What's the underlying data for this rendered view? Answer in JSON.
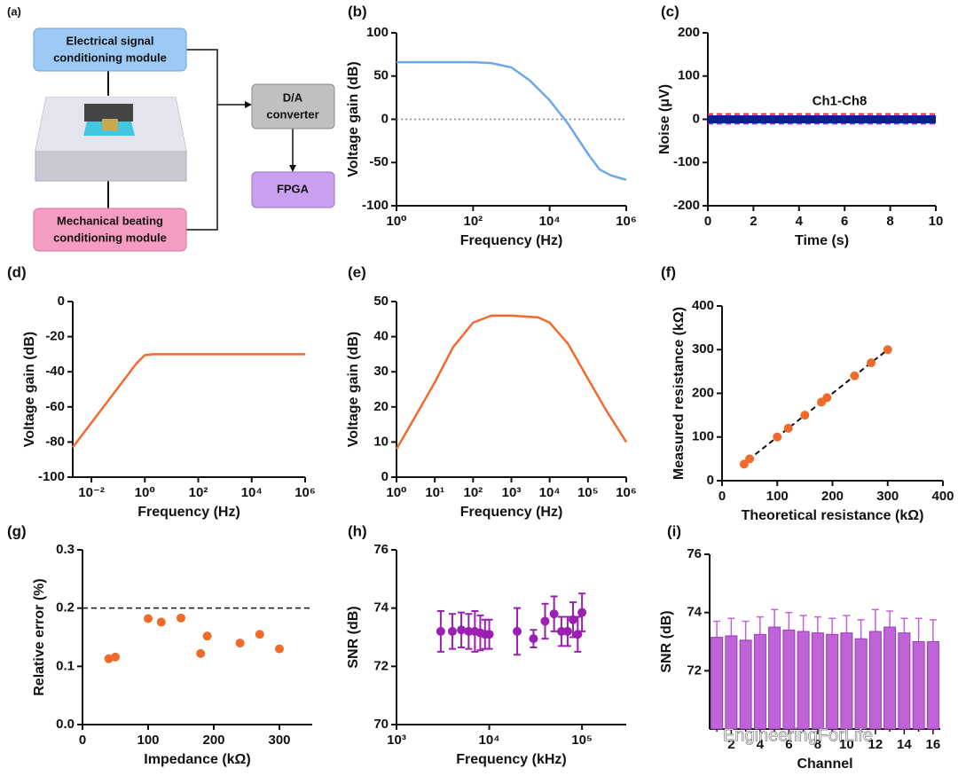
{
  "diagram": {
    "label": "(a)",
    "boxes": [
      {
        "lines": [
          "Electrical signal",
          "conditioning module"
        ]
      },
      {
        "lines": [
          "Mechanical beating",
          "conditioning module"
        ]
      },
      {
        "lines": [
          "D/A",
          "converter"
        ]
      },
      {
        "lines": [
          "FPGA"
        ]
      }
    ]
  },
  "watermark": "EngineeringForLife",
  "chart_data": [
    {
      "label": "(b)",
      "type": "line",
      "xlabel": "Frequency (Hz)",
      "ylabel": "Voltage gain (dB)",
      "log_x": true,
      "xlim": [
        1,
        1000000
      ],
      "xticks": [
        {
          "value": 1,
          "label": "10⁰"
        },
        {
          "value": 100,
          "label": "10²"
        },
        {
          "value": 10000,
          "label": "10⁴"
        },
        {
          "value": 1000000,
          "label": "10⁶"
        }
      ],
      "ylim": [
        -100,
        100
      ],
      "yticks": [
        -100,
        -50,
        0,
        50,
        100
      ],
      "hline": {
        "value": 0,
        "style": "dotted",
        "color": "#888888"
      },
      "series": [
        {
          "style": "solid",
          "color": "#6fa8e8",
          "x": [
            1,
            10,
            100,
            300,
            1000,
            3000,
            10000,
            30000,
            100000,
            200000,
            400000,
            1000000
          ],
          "values": [
            66,
            66,
            66,
            65,
            60,
            45,
            22,
            -5,
            -40,
            -58,
            -65,
            -70
          ]
        }
      ]
    },
    {
      "label": "(c)",
      "type": "line",
      "xlabel": "Time (s)",
      "ylabel": "Noise (μV)",
      "xlim": [
        0,
        10
      ],
      "xticks": [
        0,
        2,
        4,
        6,
        8,
        10
      ],
      "ylim": [
        -200,
        200
      ],
      "yticks": [
        -200,
        -100,
        0,
        100,
        200
      ],
      "annotation": "Ch1-Ch8",
      "series": [
        {
          "style": "dashed",
          "color": "#e8253a",
          "x": [
            0,
            10
          ],
          "values": [
            12,
            12
          ]
        },
        {
          "style": "dashed",
          "color": "#e8253a",
          "x": [
            0,
            10
          ],
          "values": [
            -10,
            -10
          ]
        },
        {
          "style": "band",
          "color": "#0a1e9c",
          "x": [
            0,
            10
          ],
          "values": [
            0,
            0
          ]
        }
      ]
    },
    {
      "label": "(d)",
      "type": "line",
      "xlabel": "Frequency (Hz)",
      "ylabel": "Voltage gain (dB)",
      "log_x": true,
      "xlim": [
        0.002,
        1000000
      ],
      "xticks": [
        {
          "value": 0.01,
          "label": "10⁻²"
        },
        {
          "value": 1,
          "label": "10⁰"
        },
        {
          "value": 100,
          "label": "10²"
        },
        {
          "value": 10000,
          "label": "10⁴"
        },
        {
          "value": 1000000,
          "label": "10⁶"
        }
      ],
      "ylim": [
        -100,
        0
      ],
      "yticks": [
        -100,
        -80,
        -60,
        -40,
        -20,
        0
      ],
      "series": [
        {
          "style": "solid",
          "color": "#f26a2e",
          "x": [
            0.002,
            0.01,
            0.1,
            0.5,
            1,
            2,
            1000000
          ],
          "values": [
            -83,
            -69,
            -49,
            -35,
            -30.5,
            -30,
            -30
          ]
        }
      ]
    },
    {
      "label": "(e)",
      "type": "line",
      "xlabel": "Frequency (Hz)",
      "ylabel": "Voltage gain (dB)",
      "log_x": true,
      "xlim": [
        1,
        1000000
      ],
      "xticks": [
        {
          "value": 1,
          "label": "10⁰"
        },
        {
          "value": 10,
          "label": "10¹"
        },
        {
          "value": 100,
          "label": "10²"
        },
        {
          "value": 1000,
          "label": "10³"
        },
        {
          "value": 10000,
          "label": "10⁴"
        },
        {
          "value": 100000,
          "label": "10⁵"
        },
        {
          "value": 1000000,
          "label": "10⁶"
        }
      ],
      "ylim": [
        0,
        50
      ],
      "yticks": [
        0,
        10,
        20,
        30,
        40,
        50
      ],
      "series": [
        {
          "style": "solid",
          "color": "#f26a2e",
          "x": [
            1,
            3,
            10,
            30,
            100,
            300,
            1000,
            5000,
            10000,
            30000,
            100000,
            300000,
            1000000
          ],
          "values": [
            8,
            17,
            27,
            37,
            44,
            46,
            46,
            45.5,
            44,
            38,
            28,
            19,
            10
          ]
        }
      ]
    },
    {
      "label": "(f)",
      "type": "scatter",
      "xlabel": "Theoretical resistance (kΩ)",
      "ylabel": "Measured resistance (kΩ)",
      "xlim": [
        0,
        400
      ],
      "xticks": [
        0,
        100,
        200,
        300,
        400
      ],
      "ylim": [
        0,
        400
      ],
      "yticks": [
        0,
        100,
        200,
        300,
        400
      ],
      "series": [
        {
          "style": "dashed",
          "color": "#111111",
          "x": [
            35,
            300
          ],
          "values": [
            35,
            300
          ]
        },
        {
          "style": "marker",
          "color": "#f06a2a",
          "x": [
            40,
            50,
            100,
            120,
            150,
            180,
            190,
            240,
            270,
            300
          ],
          "values": [
            38,
            50,
            100,
            120,
            150,
            180,
            190,
            240,
            270,
            300
          ]
        }
      ]
    },
    {
      "label": "(g)",
      "type": "scatter",
      "xlabel": "Impedance (kΩ)",
      "ylabel": "Relative error (%)",
      "xlim": [
        0,
        350
      ],
      "xticks": [
        0,
        100,
        200,
        300
      ],
      "ylim": [
        0,
        0.3
      ],
      "yticks": [
        {
          "value": 0,
          "label": "0.0"
        },
        0.1,
        0.2,
        0.3
      ],
      "hline": {
        "value": 0.2,
        "style": "dashed",
        "color": "#111111"
      },
      "series": [
        {
          "style": "marker",
          "color": "#f06a2a",
          "x": [
            40,
            50,
            100,
            120,
            150,
            180,
            190,
            240,
            270,
            300
          ],
          "values": [
            0.113,
            0.116,
            0.182,
            0.176,
            0.183,
            0.122,
            0.152,
            0.14,
            0.155,
            0.13
          ]
        }
      ]
    },
    {
      "label": "(h)",
      "type": "scatter",
      "xlabel": "Frequency (kHz)",
      "ylabel": "SNR (dB)",
      "log_x": true,
      "xlim": [
        1000,
        300000
      ],
      "xticks": [
        {
          "value": 1000,
          "label": "10³"
        },
        {
          "value": 10000,
          "label": "10⁴"
        },
        {
          "value": 100000,
          "label": "10⁵"
        }
      ],
      "ylim": [
        70,
        76
      ],
      "yticks": [
        70,
        72,
        74,
        76
      ],
      "series": [
        {
          "style": "marker",
          "color": "#9b1fb0",
          "x": [
            3000,
            4000,
            5000,
            6000,
            7000,
            8000,
            9000,
            10000,
            20000,
            30000,
            40000,
            50000,
            60000,
            70000,
            80000,
            90000,
            100000
          ],
          "values": [
            73.2,
            73.2,
            73.25,
            73.2,
            73.2,
            73.15,
            73.1,
            73.1,
            73.2,
            72.95,
            73.55,
            73.8,
            73.2,
            73.2,
            73.6,
            73.1,
            73.85
          ],
          "errors": [
            0.7,
            0.6,
            0.6,
            0.6,
            0.7,
            0.6,
            0.5,
            0.5,
            0.8,
            0.3,
            0.6,
            0.6,
            0.5,
            0.5,
            0.6,
            0.6,
            0.65
          ]
        }
      ]
    },
    {
      "label": "(i)",
      "type": "bar",
      "xlabel": "Channel",
      "ylabel": "SNR (dB)",
      "categories": [
        null,
        "2",
        null,
        "4",
        null,
        "6",
        null,
        "8",
        null,
        "10",
        null,
        "12",
        null,
        "14",
        null,
        "16"
      ],
      "ylim": [
        70,
        76
      ],
      "yticks": [
        72,
        74,
        76
      ],
      "color": "#c063d8",
      "values": [
        73.15,
        73.2,
        73.05,
        73.25,
        73.5,
        73.4,
        73.35,
        73.3,
        73.25,
        73.3,
        73.1,
        73.35,
        73.5,
        73.3,
        73.0,
        73.0
      ],
      "errors": [
        0.55,
        0.6,
        0.65,
        0.6,
        0.6,
        0.6,
        0.55,
        0.55,
        0.55,
        0.6,
        0.65,
        0.75,
        0.55,
        0.5,
        0.8,
        0.75
      ]
    }
  ]
}
